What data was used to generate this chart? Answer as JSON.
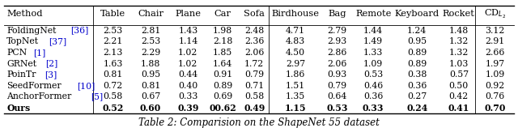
{
  "methods": [
    {
      "name": "FoldingNet",
      "ref": "[36]",
      "bold": false
    },
    {
      "name": "TopNet",
      "ref": "[37]",
      "bold": false
    },
    {
      "name": "PCN",
      "ref": "[1]",
      "bold": false
    },
    {
      "name": "GRNet",
      "ref": "[2]",
      "bold": false
    },
    {
      "name": "PoinTr",
      "ref": "[3]",
      "bold": false
    },
    {
      "name": "SeedFormer",
      "ref": "[10]",
      "bold": false
    },
    {
      "name": "AnchorFormer",
      "ref": "[5]",
      "bold": false
    },
    {
      "name": "Ours",
      "ref": "",
      "bold": true
    }
  ],
  "col_headers": [
    "Method",
    "Table",
    "Chair",
    "Plane",
    "Car",
    "Sofa",
    "Birdhouse",
    "Bag",
    "Remote",
    "Keyboard",
    "Rocket",
    "CD$_{L_2}$"
  ],
  "data": [
    [
      "2.53",
      "2.81",
      "1.43",
      "1.98",
      "2.48",
      "4.71",
      "2.79",
      "1.44",
      "1.24",
      "1.48",
      "3.12"
    ],
    [
      "2.21",
      "2.53",
      "1.14",
      "2.18",
      "2.36",
      "4.83",
      "2.93",
      "1.49",
      "0.95",
      "1.32",
      "2.91"
    ],
    [
      "2.13",
      "2.29",
      "1.02",
      "1.85",
      "2.06",
      "4.50",
      "2.86",
      "1.33",
      "0.89",
      "1.32",
      "2.66"
    ],
    [
      "1.63",
      "1.88",
      "1.02",
      "1.64",
      "1.72",
      "2.97",
      "2.06",
      "1.09",
      "0.89",
      "1.03",
      "1.97"
    ],
    [
      "0.81",
      "0.95",
      "0.44",
      "0.91",
      "0.79",
      "1.86",
      "0.93",
      "0.53",
      "0.38",
      "0.57",
      "1.09"
    ],
    [
      "0.72",
      "0.81",
      "0.40",
      "0.89",
      "0.71",
      "1.51",
      "0.79",
      "0.46",
      "0.36",
      "0.50",
      "0.92"
    ],
    [
      "0.58",
      "0.67",
      "0.33",
      "0.69",
      "0.58",
      "1.35",
      "0.64",
      "0.36",
      "0.27",
      "0.42",
      "0.76"
    ],
    [
      "0.52",
      "0.60",
      "0.39",
      "00.62",
      "0.49",
      "1.15",
      "0.53",
      "0.33",
      "0.24",
      "0.41",
      "0.70"
    ]
  ],
  "citation_color": "#0000cc",
  "caption": "Table 2: Comparision on the ShapeNet 55 dataset",
  "figsize": [
    6.4,
    1.58
  ],
  "dpi": 100
}
